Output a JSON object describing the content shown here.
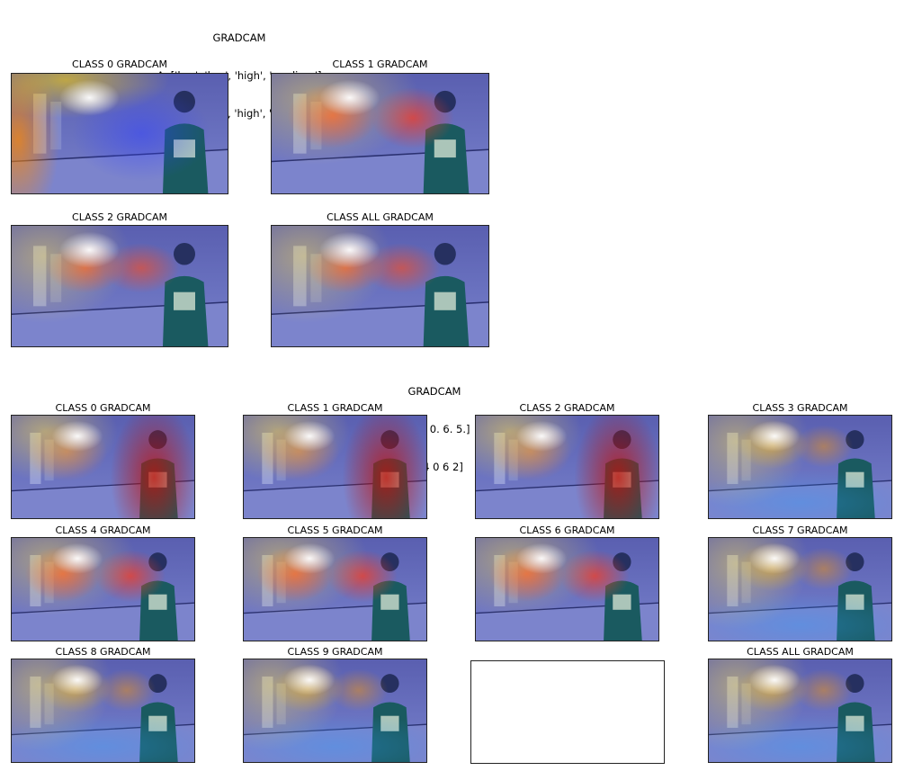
{
  "figure_a": {
    "title": "GRADCAM",
    "actual": "A: ['low', 'low', 'high', 'medium']",
    "predicted": "P: ['low', 'low', 'high', 'medium']",
    "panels": [
      {
        "label": "CLASS 0 GRADCAM",
        "variant": "c0"
      },
      {
        "label": "CLASS 1 GRADCAM",
        "variant": "mid"
      },
      {
        "label": "CLASS 2 GRADCAM",
        "variant": "mid2"
      },
      {
        "label": "CLASS ALL GRADCAM",
        "variant": "mid2"
      }
    ]
  },
  "figure_b": {
    "title": "GRADCAM",
    "actual": "A: [3. 0. 6. 5.]",
    "predicted": "P: [4 0 6 2]",
    "panels": [
      {
        "label": "CLASS 0 GRADCAM",
        "variant": "person"
      },
      {
        "label": "CLASS 1 GRADCAM",
        "variant": "person"
      },
      {
        "label": "CLASS 2 GRADCAM",
        "variant": "person"
      },
      {
        "label": "CLASS 3 GRADCAM",
        "variant": "low"
      },
      {
        "label": "CLASS 4 GRADCAM",
        "variant": "mid"
      },
      {
        "label": "CLASS 5 GRADCAM",
        "variant": "mid"
      },
      {
        "label": "CLASS 6 GRADCAM",
        "variant": "mid"
      },
      {
        "label": "CLASS 7 GRADCAM",
        "variant": "low"
      },
      {
        "label": "CLASS 8 GRADCAM",
        "variant": "low"
      },
      {
        "label": "CLASS 9 GRADCAM",
        "variant": "low"
      },
      {
        "label": "",
        "variant": "empty"
      },
      {
        "label": "CLASS ALL GRADCAM",
        "variant": "low"
      }
    ]
  }
}
